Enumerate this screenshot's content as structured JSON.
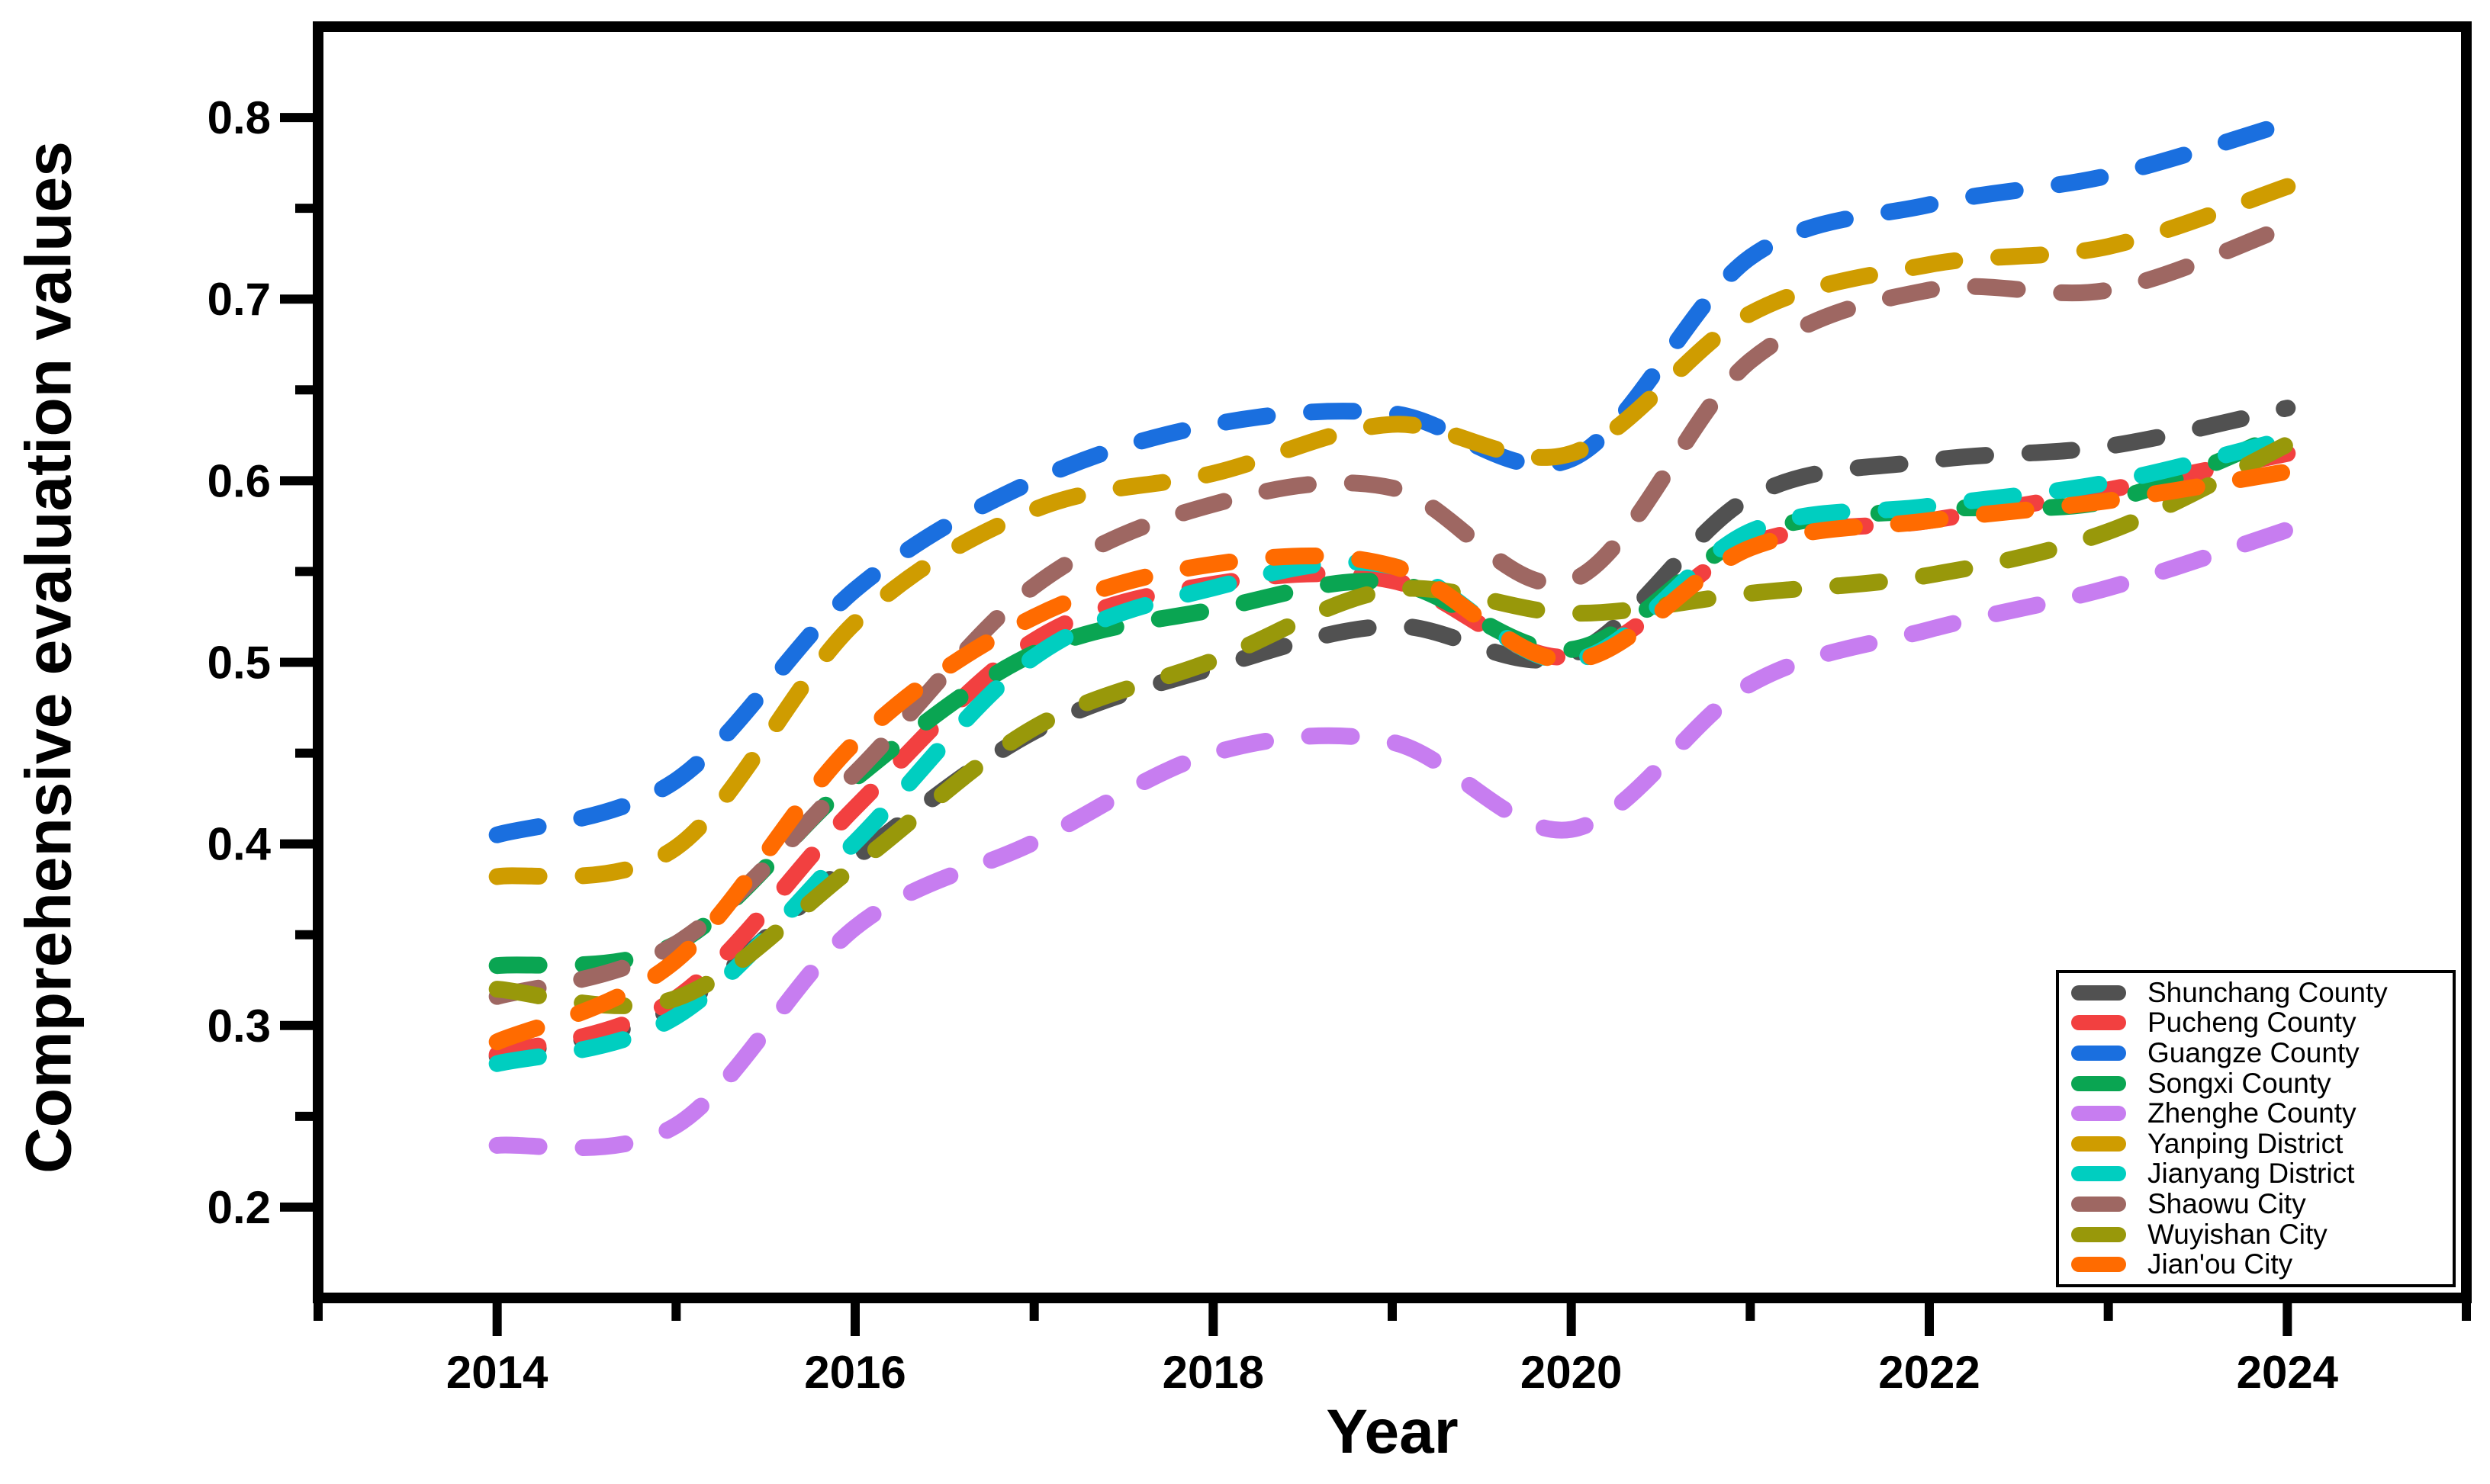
{
  "chart_data": {
    "type": "line",
    "title": "",
    "xlabel": "Year",
    "ylabel": "Comprehensive evaluation values",
    "xlim": [
      2013,
      2025
    ],
    "ylim": [
      0.15,
      0.85
    ],
    "grid": false,
    "legend_position": "bottom-right",
    "line_style": "dashed",
    "x_major_ticks": [
      2014,
      2016,
      2018,
      2020,
      2022,
      2024
    ],
    "x_major_labels": [
      "2014",
      "2016",
      "2018",
      "2020",
      "2022",
      "2024"
    ],
    "x_minor_ticks": [
      2013,
      2015,
      2017,
      2019,
      2021,
      2023,
      2025
    ],
    "y_major_ticks": [
      0.2,
      0.3,
      0.4,
      0.5,
      0.6,
      0.7,
      0.8
    ],
    "y_major_labels": [
      "0.2",
      "0.3",
      "0.4",
      "0.5",
      "0.6",
      "0.7",
      "0.8"
    ],
    "y_minor_ticks": [
      0.25,
      0.35,
      0.45,
      0.55,
      0.65,
      0.75
    ],
    "x": [
      2014,
      2015,
      2016,
      2017,
      2018,
      2019,
      2020,
      2021,
      2022,
      2023,
      2024
    ],
    "series": [
      {
        "name": "Shunchang County",
        "color": "#515151",
        "values": [
          0.283,
          0.31,
          0.392,
          0.462,
          0.497,
          0.52,
          0.504,
          0.591,
          0.611,
          0.619,
          0.64
        ]
      },
      {
        "name": "Pucheng County",
        "color": "#F24040",
        "values": [
          0.284,
          0.315,
          0.42,
          0.512,
          0.543,
          0.545,
          0.503,
          0.565,
          0.578,
          0.595,
          0.615
        ]
      },
      {
        "name": "Guangze County",
        "color": "#1A6FDF",
        "values": [
          0.405,
          0.435,
          0.54,
          0.6,
          0.631,
          0.637,
          0.612,
          0.723,
          0.752,
          0.768,
          0.797
        ]
      },
      {
        "name": "Songxi County",
        "color": "#0AA552",
        "values": [
          0.333,
          0.345,
          0.436,
          0.505,
          0.529,
          0.544,
          0.507,
          0.57,
          0.584,
          0.589,
          0.627
        ]
      },
      {
        "name": "Zhenghe County",
        "color": "#C77DF0",
        "values": [
          0.234,
          0.245,
          0.354,
          0.401,
          0.45,
          0.456,
          0.408,
          0.488,
          0.518,
          0.541,
          0.573
        ]
      },
      {
        "name": "Yanping District",
        "color": "#CF9C00",
        "values": [
          0.382,
          0.398,
          0.522,
          0.584,
          0.604,
          0.631,
          0.615,
          0.692,
          0.719,
          0.729,
          0.762
        ]
      },
      {
        "name": "Jianyang District",
        "color": "#00CEC0",
        "values": [
          0.279,
          0.305,
          0.401,
          0.503,
          0.541,
          0.553,
          0.501,
          0.572,
          0.586,
          0.599,
          0.623
        ]
      },
      {
        "name": "Shaowu City",
        "color": "#9E6762",
        "values": [
          0.316,
          0.345,
          0.439,
          0.542,
          0.587,
          0.596,
          0.545,
          0.666,
          0.705,
          0.705,
          0.74
        ]
      },
      {
        "name": "Wuyishan City",
        "color": "#98980A",
        "values": [
          0.32,
          0.315,
          0.388,
          0.464,
          0.501,
          0.54,
          0.527,
          0.538,
          0.548,
          0.572,
          0.62
        ]
      },
      {
        "name": "Jian'ou City",
        "color": "#FF6B00",
        "values": [
          0.291,
          0.336,
          0.456,
          0.525,
          0.554,
          0.553,
          0.501,
          0.563,
          0.578,
          0.589,
          0.605
        ]
      }
    ]
  }
}
